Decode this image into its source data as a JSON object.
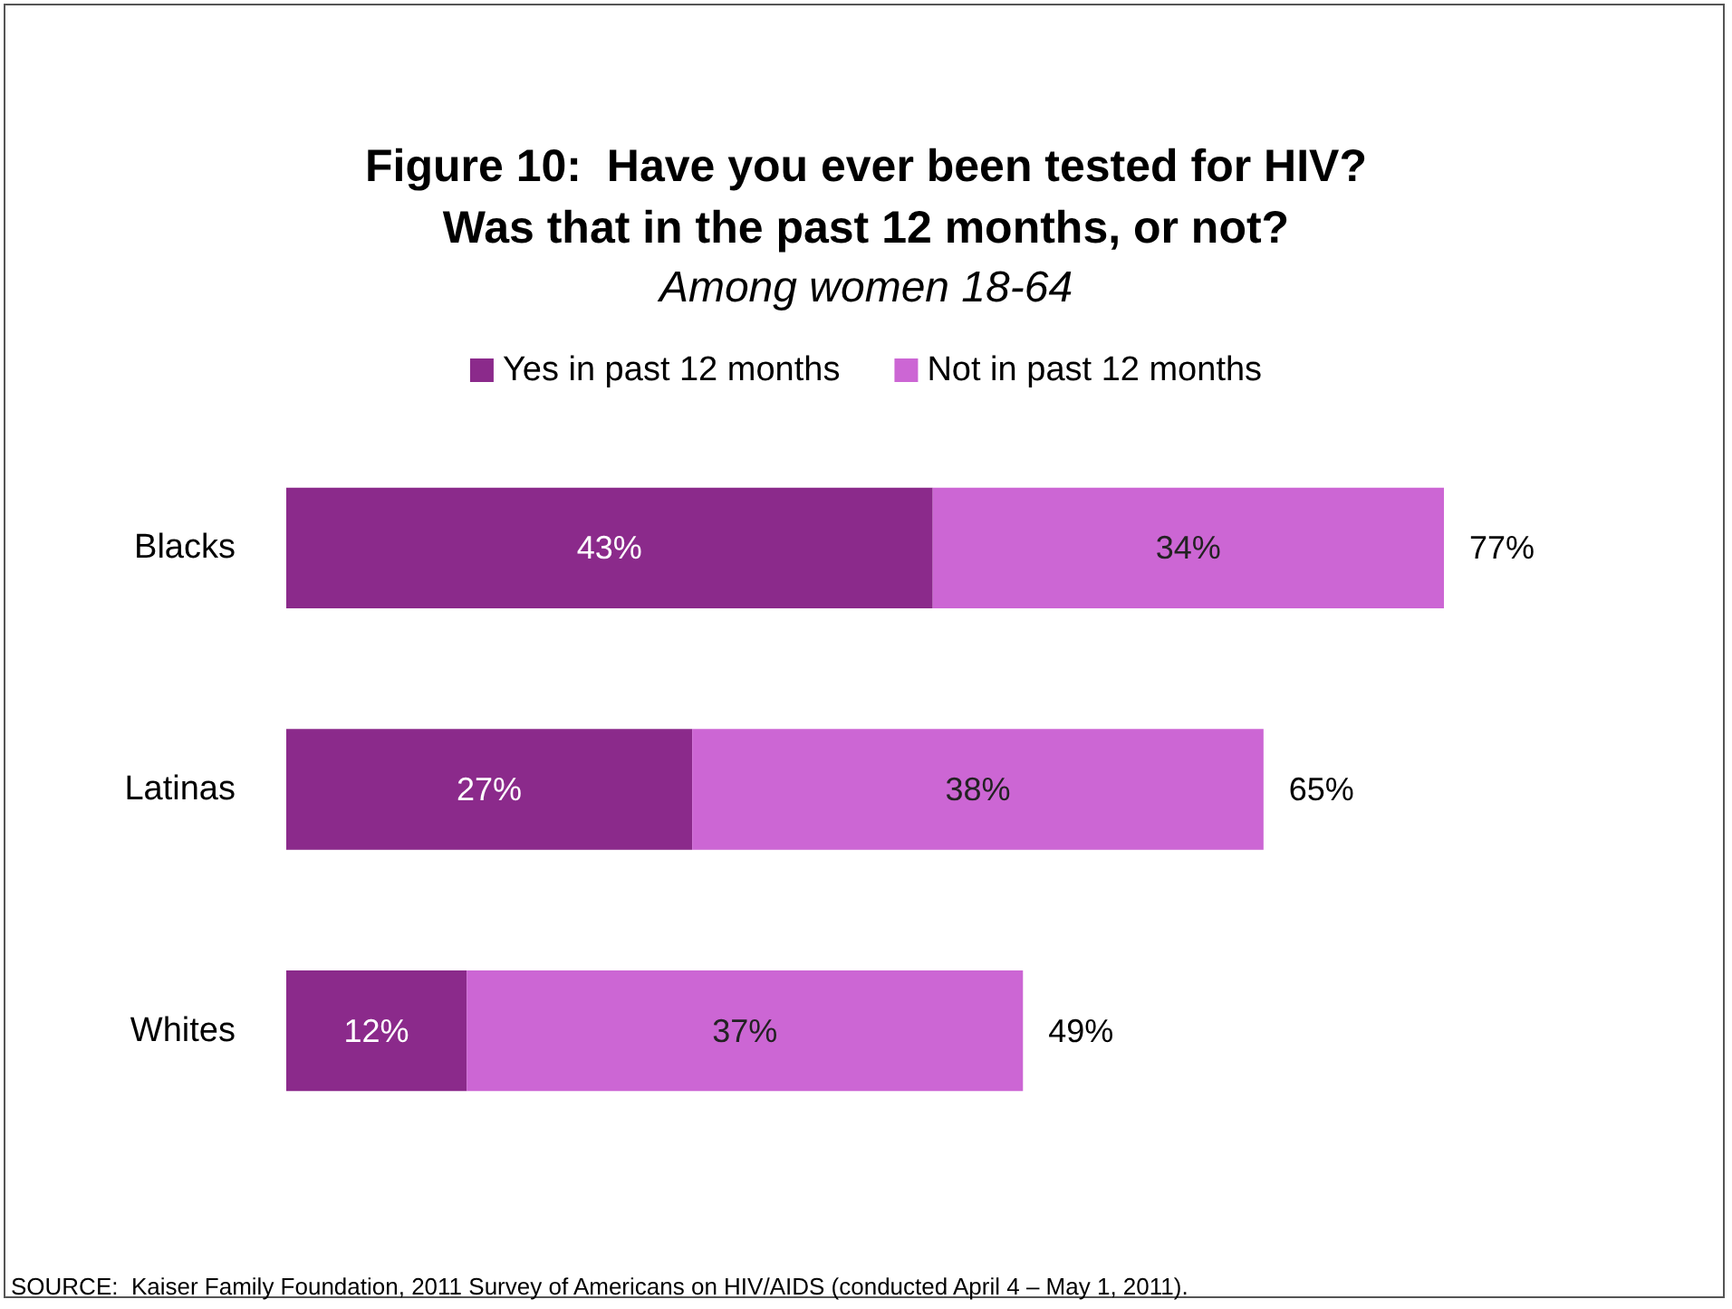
{
  "chart_data": {
    "type": "bar",
    "orientation": "horizontal",
    "stacked": true,
    "title": "Figure 10:  Have you ever been tested for HIV?\nWas that in the past 12 months, or not?",
    "subtitle": "Among women 18-64",
    "categories": [
      "Blacks",
      "Latinas",
      "Whites"
    ],
    "series": [
      {
        "name": "Yes in past 12 months",
        "color": "#8b2a8b",
        "values": [
          43,
          27,
          12
        ],
        "value_labels": [
          "43%",
          "27%",
          "12%"
        ]
      },
      {
        "name": "Not in past 12 months",
        "color": "#cc66d4",
        "values": [
          34,
          38,
          37
        ],
        "value_labels": [
          "34%",
          "38%",
          "37%"
        ]
      }
    ],
    "totals": [
      "77%",
      "65%",
      "49%"
    ],
    "legend": "top",
    "annotations": [
      "SOURCE:  Kaiser Family Foundation, 2011 Survey of Americans on HIV/AIDS (conducted April 4 – May 1, 2011)."
    ]
  }
}
